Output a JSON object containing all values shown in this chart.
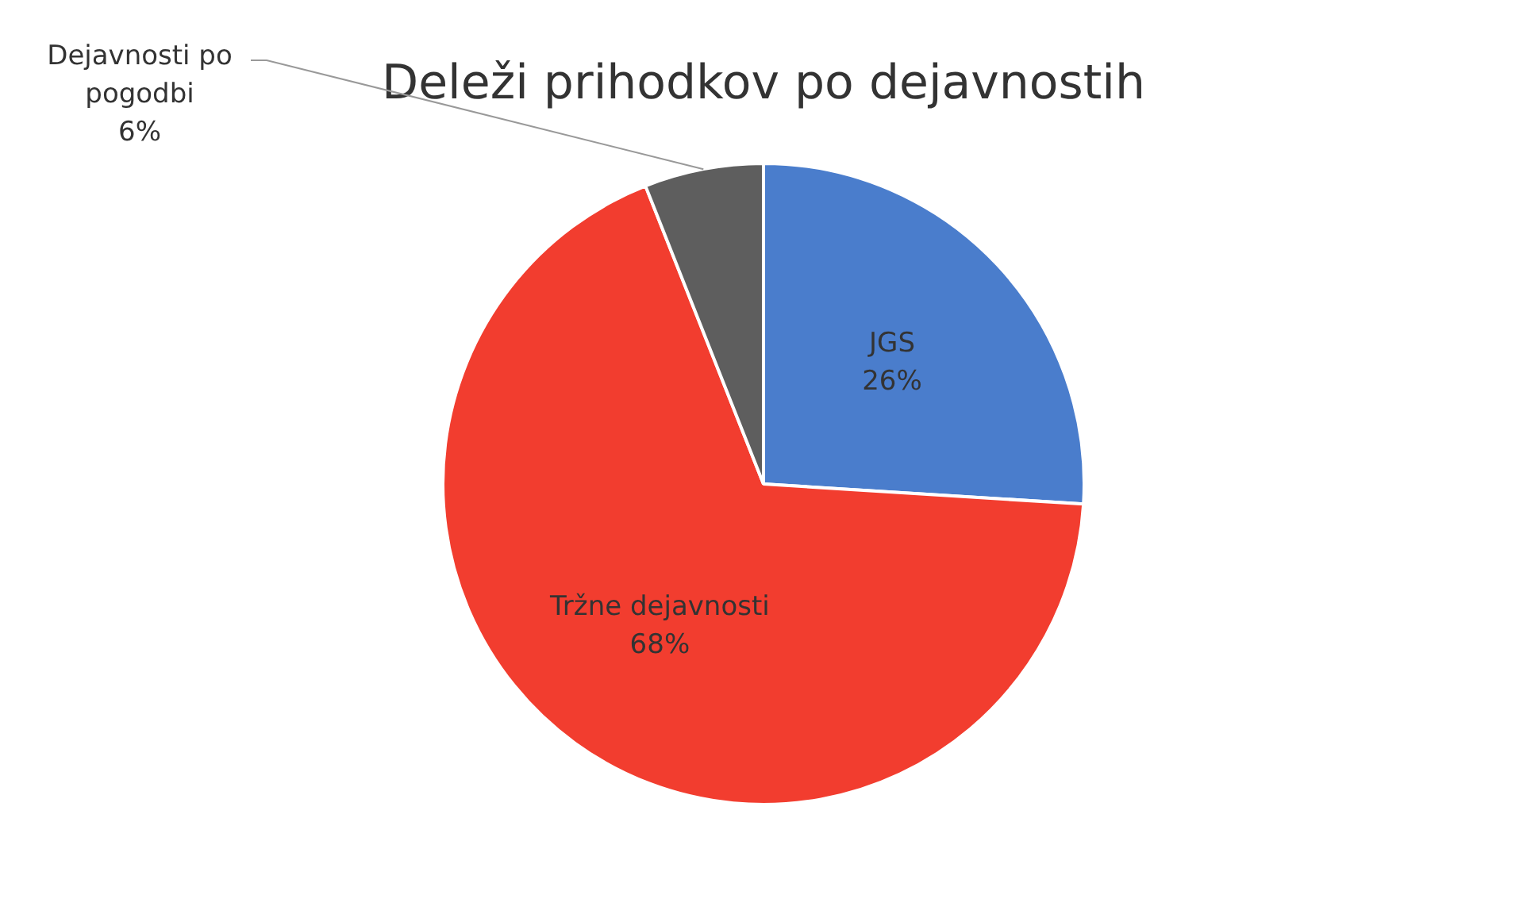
{
  "chart_data": {
    "type": "pie",
    "title": "Deleži prihodkov po dejavnostih",
    "categories": [
      "JGS",
      "Tržne dejavnosti",
      "Dejavnosti po pogodbi"
    ],
    "values": [
      26,
      68,
      6
    ],
    "colors": [
      "#4a7dcc",
      "#f23d2f",
      "#5e5e5e"
    ],
    "value_labels": [
      "26%",
      "68%",
      "6%"
    ],
    "legend": false
  }
}
